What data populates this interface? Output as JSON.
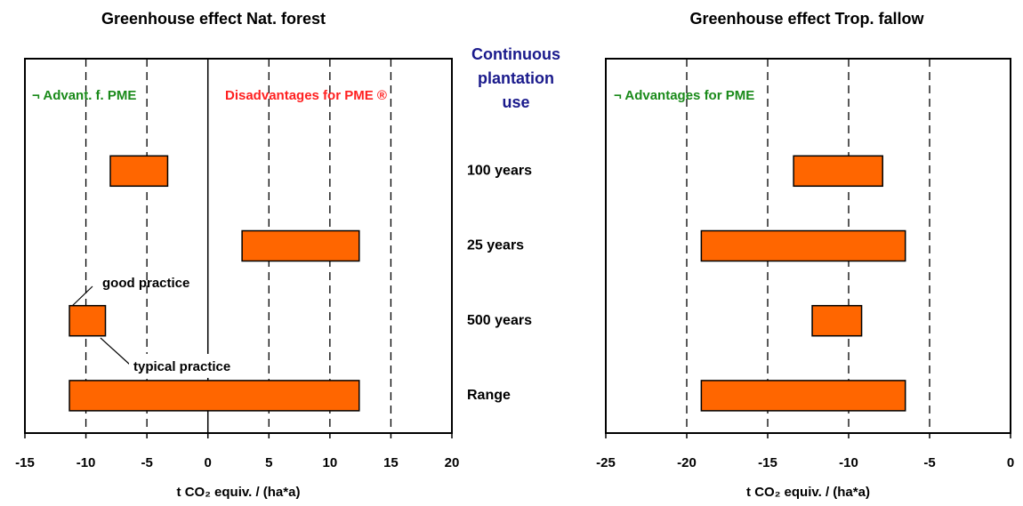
{
  "chart_data": [
    {
      "type": "range-bar",
      "title": "Greenhouse effect Nat. forest",
      "category_title": "Continuous plantation use",
      "categories": [
        "100 years",
        "25 years",
        "500 years",
        "Range"
      ],
      "values": [
        [
          -8.0,
          -3.3
        ],
        [
          2.8,
          12.4
        ],
        [
          -11.35,
          -8.4
        ],
        [
          -11.35,
          12.4
        ]
      ],
      "color": "#ff6600",
      "xlabel": "t CO₂ equiv. / (ha*a)",
      "xlim": [
        -15,
        20
      ],
      "xticks": [
        -15,
        -10,
        -5,
        0,
        5,
        10,
        15,
        20
      ],
      "grid": true,
      "zero_line": true,
      "annotations": [
        {
          "text": "¬  Advant. f. PME",
          "color": "#1a8a1a"
        },
        {
          "text": "Disadvantages for PME ®",
          "color": "#ff2020"
        },
        {
          "text": "good practice",
          "color": "#000000"
        },
        {
          "text": "typical practice",
          "color": "#000000"
        }
      ]
    },
    {
      "type": "range-bar",
      "title": "Greenhouse effect Trop. fallow",
      "values": [
        [
          -13.4,
          -7.9
        ],
        [
          -19.1,
          -6.5
        ],
        [
          -12.25,
          -9.2
        ],
        [
          -19.1,
          -6.5
        ]
      ],
      "color": "#ff6600",
      "xlabel": "t CO₂ equiv. / (ha*a)",
      "xlim": [
        -25,
        0
      ],
      "xticks": [
        -25,
        -20,
        -15,
        -10,
        -5,
        0
      ],
      "grid": true,
      "zero_line": false,
      "annotations": [
        {
          "text": "¬  Advantages for PME",
          "color": "#1a8a1a"
        }
      ]
    }
  ]
}
